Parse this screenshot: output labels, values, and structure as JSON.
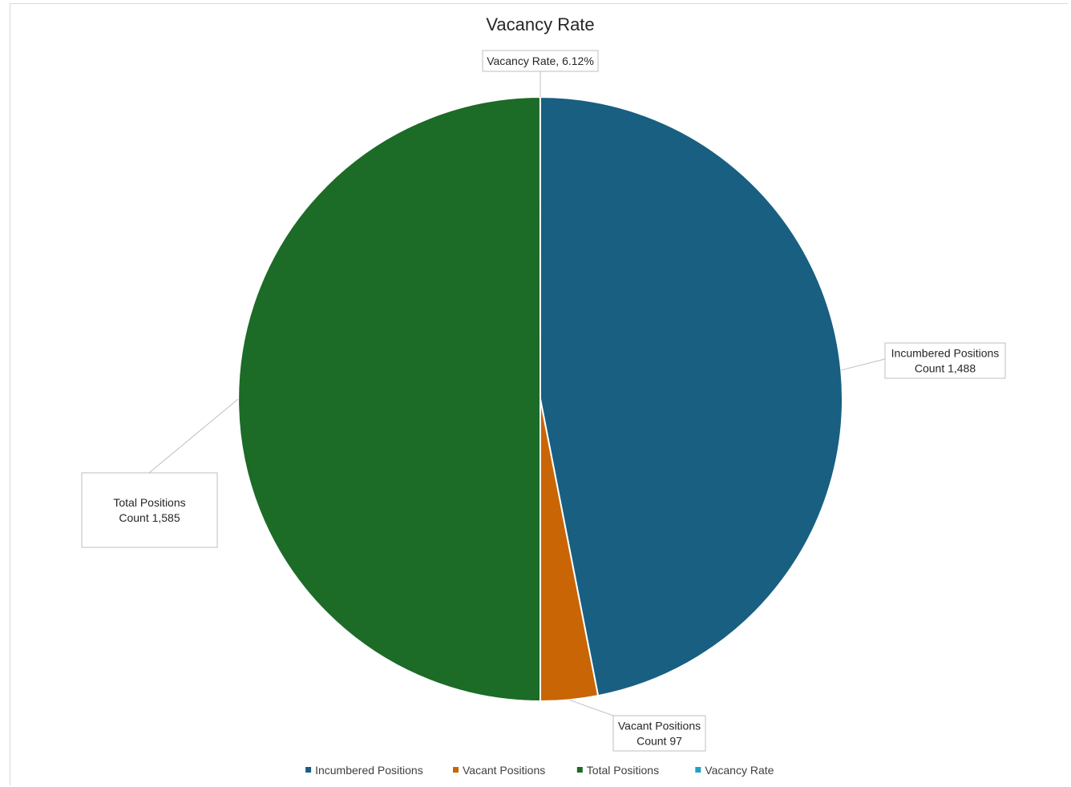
{
  "chart_data": {
    "type": "pie",
    "title": "Vacancy Rate",
    "slices": [
      {
        "name": "Incumbered Positions",
        "label_name": "Incumbered Positions",
        "label_value": "Count 1,488",
        "value": 1488,
        "color": "#185f82"
      },
      {
        "name": "Vacant Positions",
        "label_name": "Vacant Positions",
        "label_value": "Count 97",
        "value": 97,
        "color": "#c96505"
      },
      {
        "name": "Total Positions",
        "label_name": "Total Positions",
        "label_value": "Count 1,585",
        "value": 1585,
        "color": "#1c6b27"
      },
      {
        "name": "Vacancy Rate",
        "label_name": "Vacancy Rate, 6.12%",
        "label_value": "",
        "value": 0.0612,
        "color": "#1ca2cf"
      }
    ],
    "legend": {
      "position": "bottom",
      "items": [
        "Incumbered Positions",
        "Vacant Positions",
        "Total Positions",
        "Vacancy Rate"
      ]
    }
  }
}
